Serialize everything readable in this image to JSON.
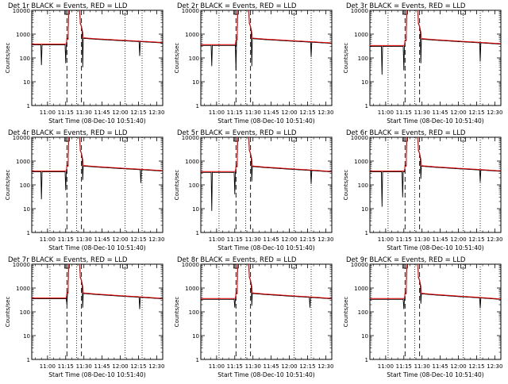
{
  "chart_data": {
    "type": "line",
    "layout": "3x3 grid",
    "ylabel": "Counts/sec",
    "xlabel": "Start Time (08-Dec-10 10:51:40)",
    "x_units": "minutes after 11:00",
    "xlim": [
      -13,
      95
    ],
    "ylim": [
      1,
      10000
    ],
    "y_scale": "log",
    "y_tick_values": [
      1,
      10,
      100,
      1000,
      10000
    ],
    "y_tick_labels": [
      "1",
      "10",
      "100",
      "1000",
      "10000"
    ],
    "x_tick_values": [
      0,
      15,
      30,
      45,
      60,
      75,
      90
    ],
    "x_tick_labels": [
      "11:00",
      "11:15",
      "11:30",
      "11:45",
      "12:00",
      "12:15",
      "12:30"
    ],
    "dotted_lines_x": [
      2,
      24,
      64,
      78
    ],
    "dashed_lines_x": [
      16,
      28
    ],
    "series_colors": {
      "events": "#000000",
      "lld": "#e00000"
    },
    "legend": "BLACK = Events, RED = LLD",
    "panels": [
      {
        "title": "Det 1r BLACK = Events, RED = LLD",
        "baseline": 380,
        "decay": 700,
        "dips": [
          [
            -5,
            50
          ],
          [
            15,
            60
          ],
          [
            29,
            40
          ],
          [
            76,
            120
          ]
        ]
      },
      {
        "title": "Det 2r BLACK = Events, RED = LLD",
        "baseline": 360,
        "decay": 680,
        "dips": [
          [
            -4,
            45
          ],
          [
            16,
            30
          ],
          [
            29,
            45
          ],
          [
            78,
            110
          ]
        ]
      },
      {
        "title": "Det 3r BLACK = Events, RED = LLD",
        "baseline": 330,
        "decay": 650,
        "dips": [
          [
            -3,
            20
          ],
          [
            15,
            30
          ],
          [
            29,
            60
          ],
          [
            78,
            70
          ]
        ]
      },
      {
        "title": "Det 4r BLACK = Events, RED = LLD",
        "baseline": 380,
        "decay": 650,
        "dips": [
          [
            -5,
            25
          ],
          [
            15,
            60
          ],
          [
            29,
            160
          ],
          [
            77,
            120
          ]
        ]
      },
      {
        "title": "Det 5r BLACK = Events, RED = LLD",
        "baseline": 360,
        "decay": 620,
        "dips": [
          [
            -4,
            8
          ],
          [
            15,
            40
          ],
          [
            29,
            140
          ],
          [
            78,
            110
          ]
        ]
      },
      {
        "title": "Det 6r BLACK = Events, RED = LLD",
        "baseline": 380,
        "decay": 640,
        "dips": [
          [
            -3,
            12
          ],
          [
            14,
            30
          ],
          [
            29,
            180
          ],
          [
            78,
            130
          ]
        ]
      },
      {
        "title": "Det 7r BLACK = Events, RED = LLD",
        "baseline": 380,
        "decay": 620,
        "dips": [
          [
            16,
            200
          ],
          [
            29,
            150
          ],
          [
            76,
            130
          ]
        ]
      },
      {
        "title": "Det 8r BLACK = Events, RED = LLD",
        "baseline": 360,
        "decay": 620,
        "dips": [
          [
            15,
            150
          ],
          [
            29,
            180
          ],
          [
            77,
            150
          ]
        ]
      },
      {
        "title": "Det 9r BLACK = Events, RED = LLD",
        "baseline": 360,
        "decay": 600,
        "dips": [
          [
            15,
            130
          ],
          [
            29,
            220
          ],
          [
            78,
            140
          ]
        ]
      }
    ]
  }
}
